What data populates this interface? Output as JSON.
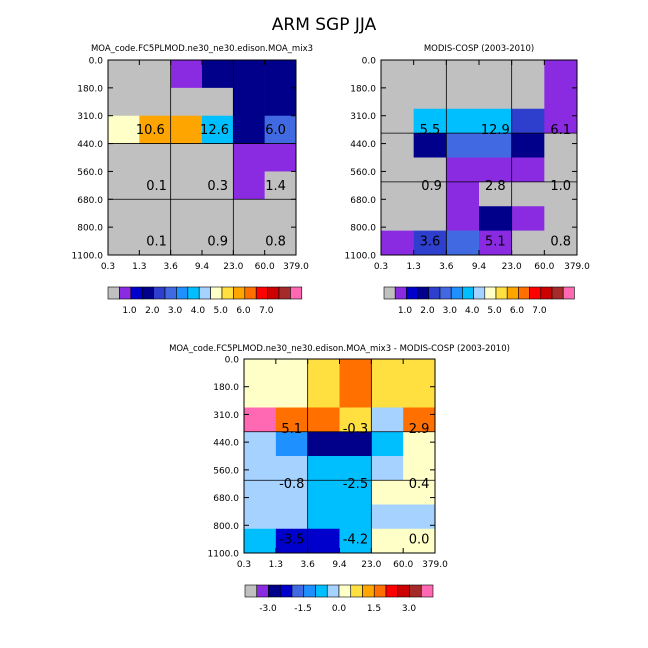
{
  "figure": {
    "title": "ARM SGP JJA"
  },
  "colors": {
    "palette_abs": [
      "#c0c0c0",
      "#8a2be2",
      "#0000cd",
      "#00008b",
      "#2d3fcc",
      "#4169e1",
      "#1e90ff",
      "#00bfff",
      "#a6d2ff",
      "#ffffc8",
      "#ffe040",
      "#ffa500",
      "#ff7000",
      "#ff0000",
      "#cc0000",
      "#a52a2a",
      "#ff69b4"
    ],
    "palette_diff": [
      "#c0c0c0",
      "#8a2be2",
      "#00008b",
      "#0000cd",
      "#4169e1",
      "#1e90ff",
      "#00bfff",
      "#a6d2ff",
      "#ffffc8",
      "#ffe040",
      "#ffa500",
      "#ff7000",
      "#ff0000",
      "#cc0000",
      "#a52a2a",
      "#ff69b4"
    ]
  },
  "chart_data": [
    {
      "type": "heatmap",
      "title": "MOA_code.FC5PLMOD.ne30_ne30.edison.MOA_mix3",
      "x_tick_labels": [
        "0.3",
        "1.3",
        "3.6",
        "9.4",
        "23.0",
        "60.0",
        "379.0"
      ],
      "y_tick_labels": [
        "0.0",
        "180.0",
        "310.0",
        "440.0",
        "560.0",
        "680.0",
        "800.0",
        "1100.0"
      ],
      "cells": [
        [
          0,
          0,
          1,
          3,
          3,
          3
        ],
        [
          0,
          0,
          0,
          0,
          3,
          3
        ],
        [
          9,
          11,
          11,
          7,
          3,
          5
        ],
        [
          0,
          0,
          0,
          0,
          1,
          1
        ],
        [
          0,
          0,
          0,
          0,
          1,
          0
        ],
        [
          0,
          0,
          0,
          0,
          0,
          0
        ],
        [
          0,
          0,
          0,
          0,
          0,
          0
        ]
      ],
      "annotations": [
        {
          "value": "10.6",
          "col": 0.85,
          "row": 2
        },
        {
          "value": "12.6",
          "col": 2.9,
          "row": 2
        },
        {
          "value": "6.0",
          "col": 4.85,
          "row": 2
        },
        {
          "value": "0.1",
          "col": 1.05,
          "row": 4
        },
        {
          "value": "0.3",
          "col": 3.0,
          "row": 4
        },
        {
          "value": "1.4",
          "col": 4.85,
          "row": 4
        },
        {
          "value": "0.1",
          "col": 1.05,
          "row": 6
        },
        {
          "value": "0.9",
          "col": 3.0,
          "row": 6
        },
        {
          "value": "0.8",
          "col": 4.85,
          "row": 6
        }
      ],
      "colorbar": {
        "labels": [
          "1.0",
          "2.0",
          "3.0",
          "4.0",
          "5.0",
          "6.0",
          "7.0"
        ]
      }
    },
    {
      "type": "heatmap",
      "title": "MODIS-COSP (2003-2010)",
      "x_tick_labels": [
        "0.3",
        "1.3",
        "3.6",
        "9.4",
        "23.0",
        "60.0",
        "379.0"
      ],
      "y_tick_labels": [
        "0.0",
        "180.0",
        "310.0",
        "440.0",
        "560.0",
        "680.0",
        "800.0",
        "1100.0"
      ],
      "cells": [
        [
          0,
          0,
          0,
          0,
          0,
          1
        ],
        [
          0,
          0,
          0,
          0,
          0,
          1
        ],
        [
          0,
          7,
          7,
          7,
          4,
          1
        ],
        [
          0,
          3,
          5,
          5,
          3,
          0
        ],
        [
          0,
          0,
          1,
          1,
          1,
          0
        ],
        [
          0,
          0,
          1,
          0,
          0,
          0
        ],
        [
          0,
          0,
          1,
          3,
          1,
          0
        ],
        [
          1,
          4,
          5,
          1,
          0,
          0
        ]
      ],
      "annotations": [
        {
          "value": "5.5",
          "col": 1.0,
          "row": 2
        },
        {
          "value": "12.9",
          "col": 3.0,
          "row": 2
        },
        {
          "value": "6.1",
          "col": 5.0,
          "row": 2
        },
        {
          "value": "0.9",
          "col": 1.05,
          "row": 4
        },
        {
          "value": "2.8",
          "col": 3.0,
          "row": 4
        },
        {
          "value": "1.0",
          "col": 5.0,
          "row": 4
        },
        {
          "value": "3.6",
          "col": 1.0,
          "row": 6
        },
        {
          "value": "5.1",
          "col": 3.0,
          "row": 6
        },
        {
          "value": "0.8",
          "col": 5.0,
          "row": 6
        }
      ],
      "colorbar": {
        "labels": [
          "1.0",
          "2.0",
          "3.0",
          "4.0",
          "5.0",
          "6.0",
          "7.0"
        ]
      }
    },
    {
      "type": "heatmap",
      "title": "MOA_code.FC5PLMOD.ne30_ne30.edison.MOA_mix3 - MODIS-COSP (2003-2010)",
      "x_tick_labels": [
        "0.3",
        "1.3",
        "3.6",
        "9.4",
        "23.0",
        "60.0",
        "379.0"
      ],
      "y_tick_labels": [
        "0.0",
        "180.0",
        "310.0",
        "440.0",
        "560.0",
        "680.0",
        "800.0",
        "1100.0"
      ],
      "cells": [
        [
          8,
          8,
          9,
          11,
          9,
          9
        ],
        [
          8,
          8,
          9,
          11,
          9,
          9
        ],
        [
          15,
          11,
          11,
          9,
          7,
          11
        ],
        [
          7,
          5,
          2,
          2,
          6,
          8
        ],
        [
          7,
          7,
          6,
          6,
          7,
          8
        ],
        [
          7,
          7,
          6,
          6,
          8,
          8
        ],
        [
          7,
          7,
          6,
          6,
          7,
          7
        ],
        [
          6,
          3,
          3,
          6,
          8,
          8
        ]
      ],
      "annotations": [
        {
          "value": "5.1",
          "col": 1.0,
          "row": 2
        },
        {
          "value": "-0.3",
          "col": 3.0,
          "row": 2
        },
        {
          "value": "2.9",
          "col": 5.0,
          "row": 2
        },
        {
          "value": "-0.8",
          "col": 1.0,
          "row": 4
        },
        {
          "value": "-2.5",
          "col": 3.0,
          "row": 4
        },
        {
          "value": "0.4",
          "col": 5.0,
          "row": 4
        },
        {
          "value": "-3.5",
          "col": 1.0,
          "row": 6
        },
        {
          "value": "-4.2",
          "col": 3.0,
          "row": 6
        },
        {
          "value": "0.0",
          "col": 5.0,
          "row": 6
        }
      ],
      "colorbar": {
        "labels": [
          "-3.0",
          "-1.5",
          "0.0",
          "1.5",
          "3.0"
        ]
      }
    }
  ]
}
